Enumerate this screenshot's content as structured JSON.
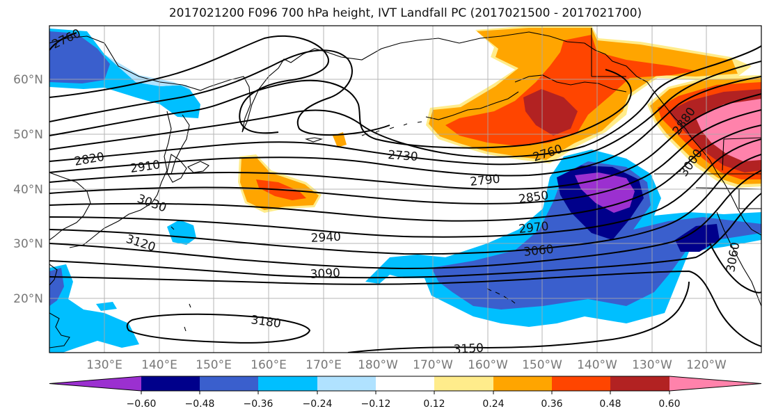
{
  "title": "2017021200 F096 700 hPa height, IVT Landfall PC (2017021500 - 2017021700)",
  "map": {
    "lat_labels": [
      "60°N",
      "50°N",
      "40°N",
      "30°N",
      "20°N"
    ],
    "lon_labels": [
      "130°E",
      "140°E",
      "150°E",
      "160°E",
      "170°E",
      "180°W",
      "170°W",
      "160°W",
      "150°W",
      "140°W",
      "130°W",
      "120°W"
    ],
    "contour_labels": [
      "2760",
      "2820",
      "2910",
      "3030",
      "3120",
      "2730",
      "2760",
      "2790",
      "2850",
      "2940",
      "2970",
      "3060",
      "3090",
      "3180",
      "3150",
      "3000",
      "2880",
      "3060"
    ],
    "fill_colors": {
      "purple": "#9b30d0",
      "navy": "#00008b",
      "royal_blue": "#3a5fcd",
      "deep_sky_blue": "#00bfff",
      "light_blue": "#b0e2ff",
      "white": "#ffffff",
      "khaki": "#ffec8b",
      "orange": "#ffa500",
      "orange_red": "#ff4500",
      "firebrick": "#b22222",
      "pink": "#ff82ab"
    }
  },
  "colorbar": {
    "colors": [
      "#9b30d0",
      "#00008b",
      "#3a5fcd",
      "#00bfff",
      "#b0e2ff",
      "#ffffff",
      "#ffec8b",
      "#ffa500",
      "#ff4500",
      "#b22222",
      "#ff82ab"
    ],
    "labels": [
      "−0.60",
      "−0.48",
      "−0.36",
      "−0.24",
      "−0.12",
      "0.12",
      "0.24",
      "0.36",
      "0.48",
      "0.60"
    ]
  }
}
